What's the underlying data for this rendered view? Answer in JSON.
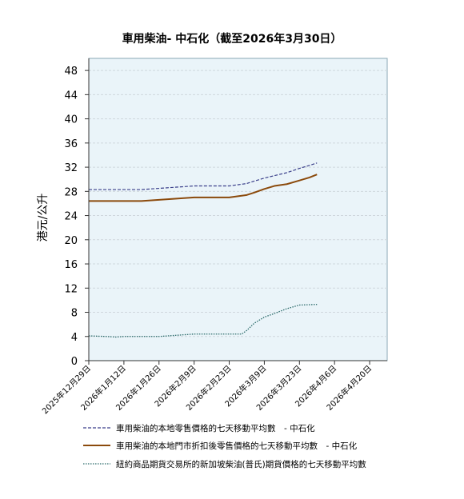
{
  "chart_data": {
    "type": "line",
    "title": "車用柴油- 中石化（截至2026年3月30日）",
    "ylabel": "港元/公升",
    "xlabel": "",
    "ylim": [
      0,
      50
    ],
    "yticks": [
      0,
      4,
      8,
      12,
      16,
      20,
      24,
      28,
      32,
      36,
      40,
      44,
      48
    ],
    "xlim": [
      "2025-12-29",
      "2026-04-27"
    ],
    "xticks": [
      "2025-12-29",
      "2026-01-12",
      "2026-01-26",
      "2026-02-09",
      "2026-02-23",
      "2026-03-09",
      "2026-03-23",
      "2026-04-06",
      "2026-04-20"
    ],
    "xtick_labels": [
      "2025年12月29日",
      "2026年1月12日",
      "2026年1月26日",
      "2026年2月9日",
      "2026年2月23日",
      "2026年3月9日",
      "2026年3月23日",
      "2026年4月6日",
      "2026年4月20日"
    ],
    "grid": "horizontal",
    "legend_position": "bottom",
    "series": [
      {
        "name": "車用柴油的本地零售價格的七天移動平均數　- 中石化",
        "style": "dashed",
        "color": "#3a3f8a",
        "points": [
          [
            "2025-12-29",
            28.3
          ],
          [
            "2026-01-05",
            28.3
          ],
          [
            "2026-01-12",
            28.3
          ],
          [
            "2026-01-19",
            28.3
          ],
          [
            "2026-01-26",
            28.5
          ],
          [
            "2026-02-02",
            28.7
          ],
          [
            "2026-02-09",
            28.9
          ],
          [
            "2026-02-16",
            28.9
          ],
          [
            "2026-02-23",
            28.9
          ],
          [
            "2026-03-02",
            29.3
          ],
          [
            "2026-03-05",
            29.7
          ],
          [
            "2026-03-09",
            30.2
          ],
          [
            "2026-03-13",
            30.6
          ],
          [
            "2026-03-18",
            31.1
          ],
          [
            "2026-03-23",
            31.8
          ],
          [
            "2026-03-27",
            32.3
          ],
          [
            "2026-03-30",
            32.7
          ]
        ]
      },
      {
        "name": "車用柴油的本地門市折扣後零售價格的七天移動平均數　- 中石化",
        "style": "solid",
        "color": "#8b4a0c",
        "points": [
          [
            "2025-12-29",
            26.4
          ],
          [
            "2026-01-05",
            26.4
          ],
          [
            "2026-01-12",
            26.4
          ],
          [
            "2026-01-19",
            26.4
          ],
          [
            "2026-01-26",
            26.6
          ],
          [
            "2026-02-02",
            26.8
          ],
          [
            "2026-02-09",
            27.0
          ],
          [
            "2026-02-16",
            27.0
          ],
          [
            "2026-02-23",
            27.0
          ],
          [
            "2026-03-02",
            27.4
          ],
          [
            "2026-03-05",
            27.8
          ],
          [
            "2026-03-09",
            28.4
          ],
          [
            "2026-03-13",
            28.9
          ],
          [
            "2026-03-18",
            29.2
          ],
          [
            "2026-03-23",
            29.8
          ],
          [
            "2026-03-27",
            30.3
          ],
          [
            "2026-03-30",
            30.8
          ]
        ]
      },
      {
        "name": "紐約商品期貨交易所的新加坡柴油(普氏)期貨價格的七天移動平均數",
        "style": "dotted",
        "color": "#2a6a6a",
        "points": [
          [
            "2025-12-29",
            4.1
          ],
          [
            "2026-01-05",
            4.0
          ],
          [
            "2026-01-09",
            3.9
          ],
          [
            "2026-01-12",
            4.0
          ],
          [
            "2026-01-19",
            4.0
          ],
          [
            "2026-01-26",
            4.0
          ],
          [
            "2026-02-02",
            4.2
          ],
          [
            "2026-02-09",
            4.4
          ],
          [
            "2026-02-16",
            4.4
          ],
          [
            "2026-02-23",
            4.4
          ],
          [
            "2026-02-28",
            4.4
          ],
          [
            "2026-03-02",
            5.0
          ],
          [
            "2026-03-05",
            6.2
          ],
          [
            "2026-03-09",
            7.2
          ],
          [
            "2026-03-13",
            7.8
          ],
          [
            "2026-03-18",
            8.6
          ],
          [
            "2026-03-23",
            9.2
          ],
          [
            "2026-03-30",
            9.3
          ]
        ]
      }
    ]
  }
}
